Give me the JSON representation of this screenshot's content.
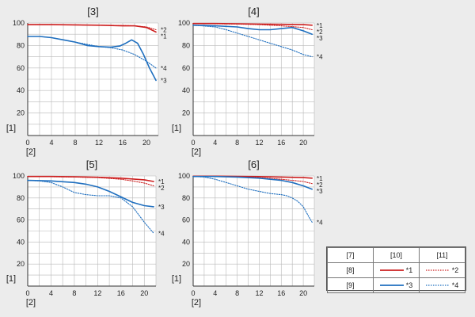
{
  "chart_data": [
    {
      "type": "line",
      "title": "[3]",
      "ylabel": "[1]",
      "xlabel": "[2]",
      "xlim": [
        0,
        22
      ],
      "ylim": [
        0,
        100
      ],
      "xticks": [
        "0",
        "4",
        "8",
        "12",
        "16",
        "20"
      ],
      "yticks": [
        "20",
        "40",
        "60",
        "80",
        "100"
      ],
      "grid": true,
      "series": [
        {
          "name": "*1",
          "color": "#cc1f1f",
          "style": "solid",
          "x": [
            0,
            4,
            8,
            12,
            16,
            18,
            20,
            21.6
          ],
          "y": [
            98.5,
            98.5,
            98.3,
            98,
            97.5,
            97.5,
            96,
            92
          ]
        },
        {
          "name": "*2",
          "color": "#cc1f1f",
          "style": "dotted",
          "x": [
            0,
            4,
            8,
            12,
            16,
            18,
            20,
            21.6
          ],
          "y": [
            98.5,
            98.5,
            98.3,
            98,
            97.8,
            97.5,
            96.5,
            94
          ]
        },
        {
          "name": "*3",
          "color": "#1f6fbf",
          "style": "solid",
          "x": [
            0,
            2,
            4,
            6,
            8,
            10,
            12,
            14,
            15.5,
            16.5,
            17.5,
            18.5,
            19.5,
            20.5,
            21.6
          ],
          "y": [
            88,
            88,
            87,
            85,
            83,
            80,
            79,
            78.5,
            79.5,
            82,
            85,
            82,
            72,
            60,
            49
          ]
        },
        {
          "name": "*4",
          "color": "#1f6fbf",
          "style": "dotted",
          "x": [
            0,
            2,
            4,
            6,
            8,
            10,
            12,
            14,
            16,
            18,
            20,
            21.6
          ],
          "y": [
            88,
            88,
            87,
            85,
            83,
            81,
            79,
            78,
            76,
            72,
            66,
            60
          ]
        }
      ]
    },
    {
      "type": "line",
      "title": "[4]",
      "ylabel": "[1]",
      "xlabel": "[2]",
      "xlim": [
        0,
        22
      ],
      "ylim": [
        0,
        100
      ],
      "xticks": [
        "0",
        "4",
        "8",
        "12",
        "16",
        "20"
      ],
      "yticks": [
        "20",
        "40",
        "60",
        "80",
        "100"
      ],
      "grid": true,
      "series": [
        {
          "name": "*1",
          "color": "#cc1f1f",
          "style": "solid",
          "x": [
            0,
            4,
            8,
            12,
            16,
            20,
            21.6
          ],
          "y": [
            99.5,
            99.5,
            99.3,
            99,
            98.8,
            98.5,
            98
          ]
        },
        {
          "name": "*2",
          "color": "#cc1f1f",
          "style": "dotted",
          "x": [
            0,
            4,
            8,
            12,
            16,
            20,
            21.6
          ],
          "y": [
            99.5,
            99.3,
            99,
            98.5,
            97.5,
            96,
            94
          ]
        },
        {
          "name": "*3",
          "color": "#1f6fbf",
          "style": "solid",
          "x": [
            0,
            4,
            8,
            10,
            12,
            14,
            16,
            18,
            20,
            21.6
          ],
          "y": [
            98,
            97.5,
            96.5,
            95,
            94,
            94,
            95,
            96,
            93,
            90
          ]
        },
        {
          "name": "*4",
          "color": "#1f6fbf",
          "style": "dotted",
          "x": [
            0,
            4,
            6,
            8,
            10,
            12,
            14,
            16,
            18,
            20,
            21.6
          ],
          "y": [
            98,
            96.5,
            94,
            91,
            88,
            85,
            82,
            79,
            76,
            72,
            70
          ]
        }
      ]
    },
    {
      "type": "line",
      "title": "[5]",
      "ylabel": "[1]",
      "xlabel": "[2]",
      "xlim": [
        0,
        22
      ],
      "ylim": [
        0,
        100
      ],
      "xticks": [
        "0",
        "4",
        "8",
        "12",
        "16",
        "20"
      ],
      "yticks": [
        "20",
        "40",
        "60",
        "80",
        "100"
      ],
      "grid": true,
      "series": [
        {
          "name": "*1",
          "color": "#cc1f1f",
          "style": "solid",
          "x": [
            0,
            4,
            8,
            12,
            16,
            20,
            21.6
          ],
          "y": [
            99.5,
            99.5,
            99.2,
            98.8,
            98,
            96.5,
            95
          ]
        },
        {
          "name": "*2",
          "color": "#cc1f1f",
          "style": "dotted",
          "x": [
            0,
            4,
            8,
            12,
            16,
            18,
            20,
            21.6
          ],
          "y": [
            99.5,
            99.3,
            99,
            98.5,
            97,
            95.5,
            93.5,
            91
          ]
        },
        {
          "name": "*3",
          "color": "#1f6fbf",
          "style": "solid",
          "x": [
            0,
            4,
            8,
            10,
            12,
            14,
            16,
            18,
            20,
            21.6
          ],
          "y": [
            96,
            95.5,
            94,
            92.5,
            90,
            86,
            81,
            76,
            73,
            72
          ]
        },
        {
          "name": "*4",
          "color": "#1f6fbf",
          "style": "dotted",
          "x": [
            0,
            2,
            4,
            6,
            8,
            10,
            12,
            14,
            16,
            18,
            20,
            21.6
          ],
          "y": [
            96,
            95.5,
            94,
            90,
            85,
            83,
            82,
            82,
            80,
            72,
            58,
            48
          ]
        }
      ]
    },
    {
      "type": "line",
      "title": "[6]",
      "ylabel": "[1]",
      "xlabel": "[2]",
      "xlim": [
        0,
        22
      ],
      "ylim": [
        0,
        100
      ],
      "xticks": [
        "0",
        "4",
        "8",
        "12",
        "16",
        "20"
      ],
      "yticks": [
        "20",
        "40",
        "60",
        "80",
        "100"
      ],
      "grid": true,
      "series": [
        {
          "name": "*1",
          "color": "#cc1f1f",
          "style": "solid",
          "x": [
            0,
            4,
            8,
            12,
            16,
            20,
            21.6
          ],
          "y": [
            99.8,
            99.8,
            99.6,
            99.4,
            99,
            98.5,
            98
          ]
        },
        {
          "name": "*2",
          "color": "#cc1f1f",
          "style": "dotted",
          "x": [
            0,
            4,
            8,
            12,
            16,
            20,
            21.6
          ],
          "y": [
            99.8,
            99.6,
            99.3,
            98.5,
            97,
            95,
            93
          ]
        },
        {
          "name": "*3",
          "color": "#1f6fbf",
          "style": "solid",
          "x": [
            0,
            4,
            8,
            12,
            14,
            16,
            18,
            20,
            21.6
          ],
          "y": [
            99.5,
            99.5,
            99,
            98,
            97,
            96,
            94,
            91,
            88
          ]
        },
        {
          "name": "*4",
          "color": "#1f6fbf",
          "style": "dotted",
          "x": [
            0,
            2,
            4,
            6,
            8,
            10,
            12,
            14,
            16,
            17,
            18,
            19,
            20,
            21,
            21.6
          ],
          "y": [
            99.5,
            99,
            97,
            94,
            91,
            88,
            86,
            84,
            83,
            82,
            80,
            77,
            72,
            63,
            58
          ]
        }
      ]
    }
  ],
  "legend": {
    "header": [
      "[7]",
      "[10]",
      "[11]"
    ],
    "rows": [
      {
        "label": "[8]",
        "solid_name": "*1",
        "dotted_name": "*2",
        "color": "#cc1f1f"
      },
      {
        "label": "[9]",
        "solid_name": "*3",
        "dotted_name": "*4",
        "color": "#1f6fbf"
      }
    ]
  }
}
